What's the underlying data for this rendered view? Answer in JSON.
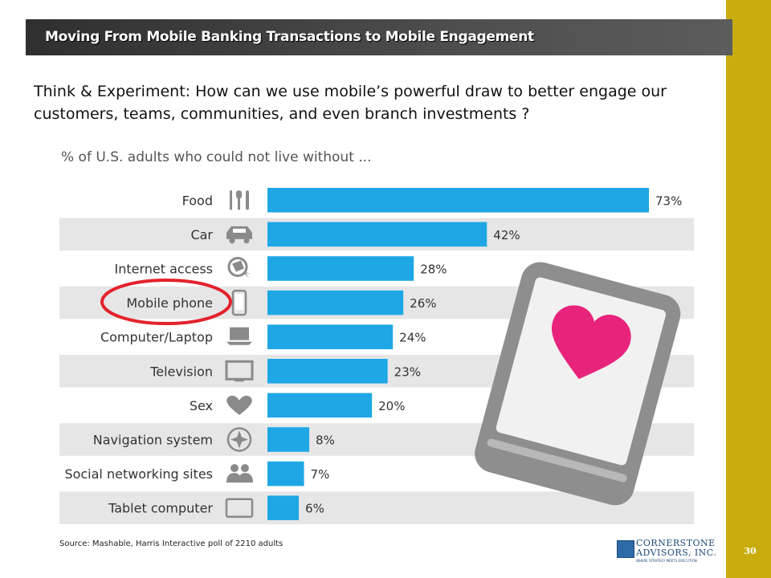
{
  "slide": {
    "title": "Moving From Mobile Banking Transactions to Mobile Engagement",
    "question": "Think & Experiment: How can we use mobile’s powerful draw to better engage our customers, teams, communities, and even branch investments ?",
    "source": "Source:  Mashable, Harris Interactive  poll of 2210 adults",
    "page_number": "30",
    "logo": {
      "line1": "CORNERSTONE",
      "line2": "ADVISORS, INC.",
      "tagline": "WHERE STRATEGY MEETS EXECUTION"
    }
  },
  "chart_data": {
    "type": "bar",
    "orientation": "horizontal",
    "title": "% of U.S. adults who could not live without ...",
    "categories": [
      "Food",
      "Car",
      "Internet access",
      "Mobile phone",
      "Computer/Laptop",
      "Television",
      "Sex",
      "Navigation system",
      "Social networking sites",
      "Tablet computer"
    ],
    "values": [
      73,
      42,
      28,
      26,
      24,
      23,
      20,
      8,
      7,
      6
    ],
    "value_labels": [
      "73%",
      "42%",
      "28%",
      "26%",
      "24%",
      "23%",
      "20%",
      "8%",
      "7%",
      "6%"
    ],
    "icons": [
      "cutlery-icon",
      "car-icon",
      "globe-icon",
      "mobile-phone-icon",
      "laptop-icon",
      "television-icon",
      "heart-icon",
      "compass-icon",
      "people-icon",
      "tablet-icon"
    ],
    "xlim": [
      0,
      73
    ],
    "highlighted_category": "Mobile phone",
    "colors": {
      "bar": "#1ea7e4",
      "row_band": "#e6e6e6",
      "highlight_circle": "#e3222b",
      "icon": "#8a8a8a",
      "heart": "#e8237c"
    }
  }
}
